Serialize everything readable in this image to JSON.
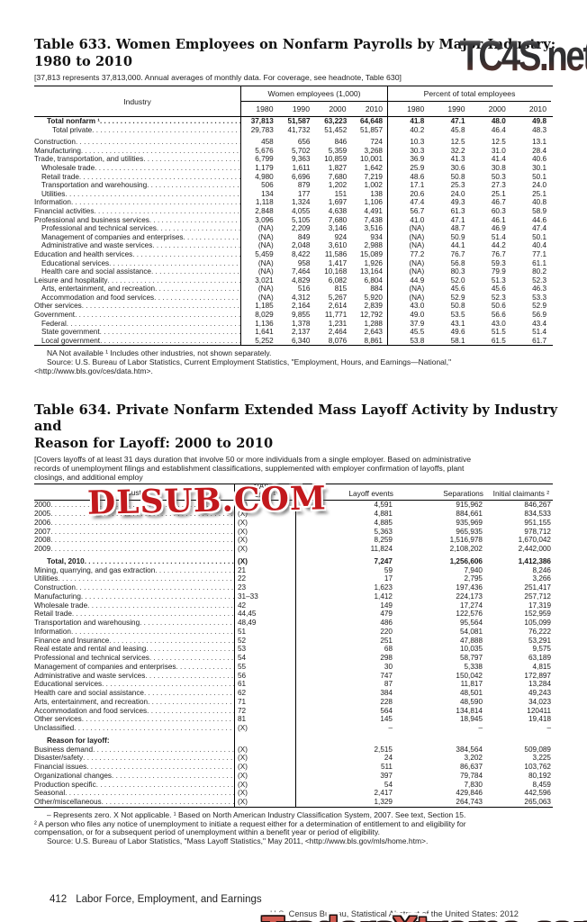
{
  "watermarks": {
    "top": "TC4S.net",
    "middle": "DLSUB.COM",
    "bottom": "TradersXtreme.com",
    "top_color_dark": "#2c2c2e",
    "top_color_maroon": "#6a352c",
    "middle_color": "#c2191d",
    "bottom_color": "#d05a50"
  },
  "page_footer": {
    "page_number": "412",
    "section_title": "Labor Force, Employment, and Earnings",
    "census_line": "U.S. Census Bureau, Statistical Abstract of the United States: 2012"
  },
  "table633": {
    "title_line1": "Table 633. Women Employees on Nonfarm Payrolls by Major Industry:",
    "title_line2": "1980 to 2010",
    "headnote": "[37,813 represents 37,813,000. Annual averages of monthly data. For coverage, see headnote, Table 630]",
    "industry_header": "Industry",
    "group1_label": "Women employees (1,000)",
    "group2_label": "Percent of total employees",
    "years": [
      "1980",
      "1990",
      "2000",
      "2010"
    ],
    "rows": [
      {
        "label": "Total nonfarm ¹",
        "bold": true,
        "indent": 2,
        "vals": [
          "37,813",
          "51,587",
          "63,223",
          "64,648",
          "41.8",
          "47.1",
          "48.0",
          "49.8"
        ]
      },
      {
        "label": "Total private",
        "indent": 3,
        "vals": [
          "29,783",
          "41,732",
          "51,452",
          "51,857",
          "40.2",
          "45.8",
          "46.4",
          "48.3"
        ]
      },
      {
        "label": "Construction",
        "gap": true,
        "vals": [
          "458",
          "656",
          "846",
          "724",
          "10.3",
          "12.5",
          "12.5",
          "13.1"
        ]
      },
      {
        "label": "Manufacturing",
        "vals": [
          "5,676",
          "5,702",
          "5,359",
          "3,268",
          "30.3",
          "32.2",
          "31.0",
          "28.4"
        ]
      },
      {
        "label": "Trade, transportation, and utilities",
        "vals": [
          "6,799",
          "9,363",
          "10,859",
          "10,001",
          "36.9",
          "41.3",
          "41.4",
          "40.6"
        ]
      },
      {
        "label": "Wholesale trade",
        "indent": 1,
        "vals": [
          "1,179",
          "1,611",
          "1,827",
          "1,642",
          "25.9",
          "30.6",
          "30.8",
          "30.1"
        ]
      },
      {
        "label": "Retail trade",
        "indent": 1,
        "vals": [
          "4,980",
          "6,696",
          "7,680",
          "7,219",
          "48.6",
          "50.8",
          "50.3",
          "50.1"
        ]
      },
      {
        "label": "Transportation and warehousing",
        "indent": 1,
        "vals": [
          "506",
          "879",
          "1,202",
          "1,002",
          "17.1",
          "25.3",
          "27.3",
          "24.0"
        ]
      },
      {
        "label": "Utilities",
        "indent": 1,
        "vals": [
          "134",
          "177",
          "151",
          "138",
          "20.6",
          "24.0",
          "25.1",
          "25.1"
        ]
      },
      {
        "label": "Information",
        "vals": [
          "1,118",
          "1,324",
          "1,697",
          "1,106",
          "47.4",
          "49.3",
          "46.7",
          "40.8"
        ]
      },
      {
        "label": "Financial activities",
        "vals": [
          "2,848",
          "4,055",
          "4,638",
          "4,491",
          "56.7",
          "61.3",
          "60.3",
          "58.9"
        ]
      },
      {
        "label": "Professional and business services",
        "vals": [
          "3,096",
          "5,105",
          "7,680",
          "7,438",
          "41.0",
          "47.1",
          "46.1",
          "44.6"
        ]
      },
      {
        "label": "Professional and technical services",
        "indent": 1,
        "vals": [
          "(NA)",
          "2,209",
          "3,146",
          "3,516",
          "(NA)",
          "48.7",
          "46.9",
          "47.4"
        ]
      },
      {
        "label": "Management of companies and enterprises",
        "indent": 1,
        "vals": [
          "(NA)",
          "849",
          "924",
          "934",
          "(NA)",
          "50.9",
          "51.4",
          "50.1"
        ]
      },
      {
        "label": "Administrative and waste services",
        "indent": 1,
        "vals": [
          "(NA)",
          "2,048",
          "3,610",
          "2,988",
          "(NA)",
          "44.1",
          "44.2",
          "40.4"
        ]
      },
      {
        "label": "Education and health services",
        "vals": [
          "5,459",
          "8,422",
          "11,586",
          "15,089",
          "77.2",
          "76.7",
          "76.7",
          "77.1"
        ]
      },
      {
        "label": "Educational services",
        "indent": 1,
        "vals": [
          "(NA)",
          "958",
          "1,417",
          "1,926",
          "(NA)",
          "56.8",
          "59.3",
          "61.1"
        ]
      },
      {
        "label": "Health care and social assistance",
        "indent": 1,
        "vals": [
          "(NA)",
          "7,464",
          "10,168",
          "13,164",
          "(NA)",
          "80.3",
          "79.9",
          "80.2"
        ]
      },
      {
        "label": "Leisure and hospitality",
        "vals": [
          "3,021",
          "4,829",
          "6,082",
          "6,804",
          "44.9",
          "52.0",
          "51.3",
          "52.3"
        ]
      },
      {
        "label": "Arts, entertainment, and recreation",
        "indent": 1,
        "vals": [
          "(NA)",
          "516",
          "815",
          "884",
          "(NA)",
          "45.6",
          "45.6",
          "46.3"
        ]
      },
      {
        "label": "Accommodation and food services",
        "indent": 1,
        "vals": [
          "(NA)",
          "4,312",
          "5,267",
          "5,920",
          "(NA)",
          "52.9",
          "52.3",
          "53.3"
        ]
      },
      {
        "label": "Other services",
        "vals": [
          "1,185",
          "2,164",
          "2,614",
          "2,839",
          "43.0",
          "50.8",
          "50.6",
          "52.9"
        ]
      },
      {
        "label": "Government",
        "vals": [
          "8,029",
          "9,855",
          "11,771",
          "12,792",
          "49.0",
          "53.5",
          "56.6",
          "56.9"
        ]
      },
      {
        "label": "Federal",
        "indent": 1,
        "vals": [
          "1,136",
          "1,378",
          "1,231",
          "1,288",
          "37.9",
          "43.1",
          "43.0",
          "43.4"
        ]
      },
      {
        "label": "State government",
        "indent": 1,
        "vals": [
          "1,641",
          "2,137",
          "2,464",
          "2,643",
          "45.5",
          "49.6",
          "51.5",
          "51.4"
        ]
      },
      {
        "label": "Local government",
        "indent": 1,
        "vals": [
          "5,252",
          "6,340",
          "8,076",
          "8,861",
          "53.8",
          "58.1",
          "61.5",
          "61.7"
        ]
      }
    ],
    "footnotes": [
      "NA Not available ¹ Includes other industries, not shown separately.",
      "Source: U.S. Bureau of Labor Statistics, Current Employment Statistics, \"Employment, Hours, and Earnings—National,\"",
      "<http://www.bls.gov/ces/data.htm>."
    ]
  },
  "table634": {
    "title_line1": "Table 634. Private Nonfarm Extended Mass Layoff Activity by Industry and",
    "title_line2": "Reason for Layoff: 2000 to 2010",
    "headnote_lines": [
      "[Covers layoffs of at least 31 days duration that involve 50 or more individuals from a single employer. Based on administrative",
      "records of unemployment filings and establishment classifications, supplemented with employer confirmation of layoffs, plant",
      "closings, and additional employ"
    ],
    "industry_header": "Industry",
    "code_header_top": "NAICS",
    "code_header_bottom": "code ¹",
    "events_header": "Layoff events",
    "separations_header": "Separations",
    "claimants_header": "Initial claimants ²",
    "rows": [
      {
        "label": "2000",
        "code": "(X)",
        "vals": [
          "4,591",
          "915,962",
          "846,267"
        ]
      },
      {
        "label": "2005",
        "code": "(X)",
        "vals": [
          "4,881",
          "884,661",
          "834,533"
        ]
      },
      {
        "label": "2006",
        "code": "(X)",
        "vals": [
          "4,885",
          "935,969",
          "951,155"
        ]
      },
      {
        "label": "2007",
        "code": "(X)",
        "vals": [
          "5,363",
          "965,935",
          "978,712"
        ]
      },
      {
        "label": "2008",
        "code": "(X)",
        "vals": [
          "8,259",
          "1,516,978",
          "1,670,042"
        ]
      },
      {
        "label": "2009",
        "code": "(X)",
        "vals": [
          "11,824",
          "2,108,202",
          "2,442,000"
        ]
      },
      {
        "label": "Total, 2010",
        "code": "(X)",
        "bold": true,
        "indent": 2,
        "gap": true,
        "vals": [
          "7,247",
          "1,256,606",
          "1,412,386"
        ]
      },
      {
        "label": "Mining, quarrying, and gas extraction",
        "code": "21",
        "vals": [
          "59",
          "7,940",
          "8,246"
        ]
      },
      {
        "label": "Utilities",
        "code": "22",
        "vals": [
          "17",
          "2,795",
          "3,266"
        ]
      },
      {
        "label": "Construction",
        "code": "23",
        "vals": [
          "1,623",
          "197,436",
          "251,417"
        ]
      },
      {
        "label": "Manufacturing",
        "code": "31–33",
        "vals": [
          "1,412",
          "224,173",
          "257,712"
        ]
      },
      {
        "label": "Wholesale trade",
        "code": "42",
        "vals": [
          "149",
          "17,274",
          "17,319"
        ]
      },
      {
        "label": "Retail trade",
        "code": "44,45",
        "vals": [
          "479",
          "122,576",
          "152,959"
        ]
      },
      {
        "label": "Transportation and warehousing",
        "code": "48,49",
        "vals": [
          "486",
          "95,564",
          "105,099"
        ]
      },
      {
        "label": "Information",
        "code": "51",
        "vals": [
          "220",
          "54,081",
          "76,222"
        ]
      },
      {
        "label": "Finance and Insurance",
        "code": "52",
        "vals": [
          "251",
          "47,888",
          "53,291"
        ]
      },
      {
        "label": "Real estate and rental and leasing",
        "code": "53",
        "vals": [
          "68",
          "10,035",
          "9,575"
        ]
      },
      {
        "label": "Professional and technical services",
        "code": "54",
        "vals": [
          "298",
          "58,797",
          "63,189"
        ]
      },
      {
        "label": "Management of companies and enterprises",
        "code": "55",
        "vals": [
          "30",
          "5,338",
          "4,815"
        ]
      },
      {
        "label": "Administrative and waste services",
        "code": "56",
        "vals": [
          "747",
          "150,042",
          "172,897"
        ]
      },
      {
        "label": "Educational services",
        "code": "61",
        "vals": [
          "87",
          "11,817",
          "13,284"
        ]
      },
      {
        "label": "Health care and social assistance",
        "code": "62",
        "vals": [
          "384",
          "48,501",
          "49,243"
        ]
      },
      {
        "label": "Arts, entertainment, and recreation",
        "code": "71",
        "vals": [
          "228",
          "48,590",
          "34,023"
        ]
      },
      {
        "label": "Accommodation and food services",
        "code": "72",
        "vals": [
          "564",
          "134,814",
          "120411"
        ]
      },
      {
        "label": "Other services",
        "code": "81",
        "vals": [
          "145",
          "18,945",
          "19,418"
        ]
      },
      {
        "label": "Unclassified",
        "code": "(X)",
        "vals": [
          "–",
          "–",
          "–"
        ]
      },
      {
        "label": "Reason for layoff:",
        "section": true,
        "bold": true,
        "indent": 2,
        "gap": true
      },
      {
        "label": "Business demand",
        "code": "(X)",
        "vals": [
          "2,515",
          "384,564",
          "509,089"
        ]
      },
      {
        "label": "Disaster/safety",
        "code": "(X)",
        "vals": [
          "24",
          "3,202",
          "3,225"
        ]
      },
      {
        "label": "Financial issues",
        "code": "(X)",
        "vals": [
          "511",
          "86,637",
          "103,762"
        ]
      },
      {
        "label": "Organizational changes",
        "code": "(X)",
        "vals": [
          "397",
          "79,784",
          "80,192"
        ]
      },
      {
        "label": "Production specific",
        "code": "(X)",
        "vals": [
          "54",
          "7,830",
          "8,459"
        ]
      },
      {
        "label": "Seasonal",
        "code": "(X)",
        "vals": [
          "2,417",
          "429,846",
          "442,596"
        ]
      },
      {
        "label": "Other/miscellaneous",
        "code": "(X)",
        "vals": [
          "1,329",
          "264,743",
          "265,063"
        ]
      }
    ],
    "footnotes": [
      "– Represents zero. X Not applicable. ¹ Based on North American Industry Classification System, 2007. See text, Section 15.",
      "² A person who files any notice of unemployment to initiate a request either for a determination of entitlement to and eligibility for",
      "compensation, or for a subsequent period of unemployment within a benefit year or period of eligibility.",
      "Source: U.S. Bureau of Labor Statistics, \"Mass Layoff Statistics,\" May 2011, <http://www.bls.gov/mls/home.htm>."
    ]
  }
}
